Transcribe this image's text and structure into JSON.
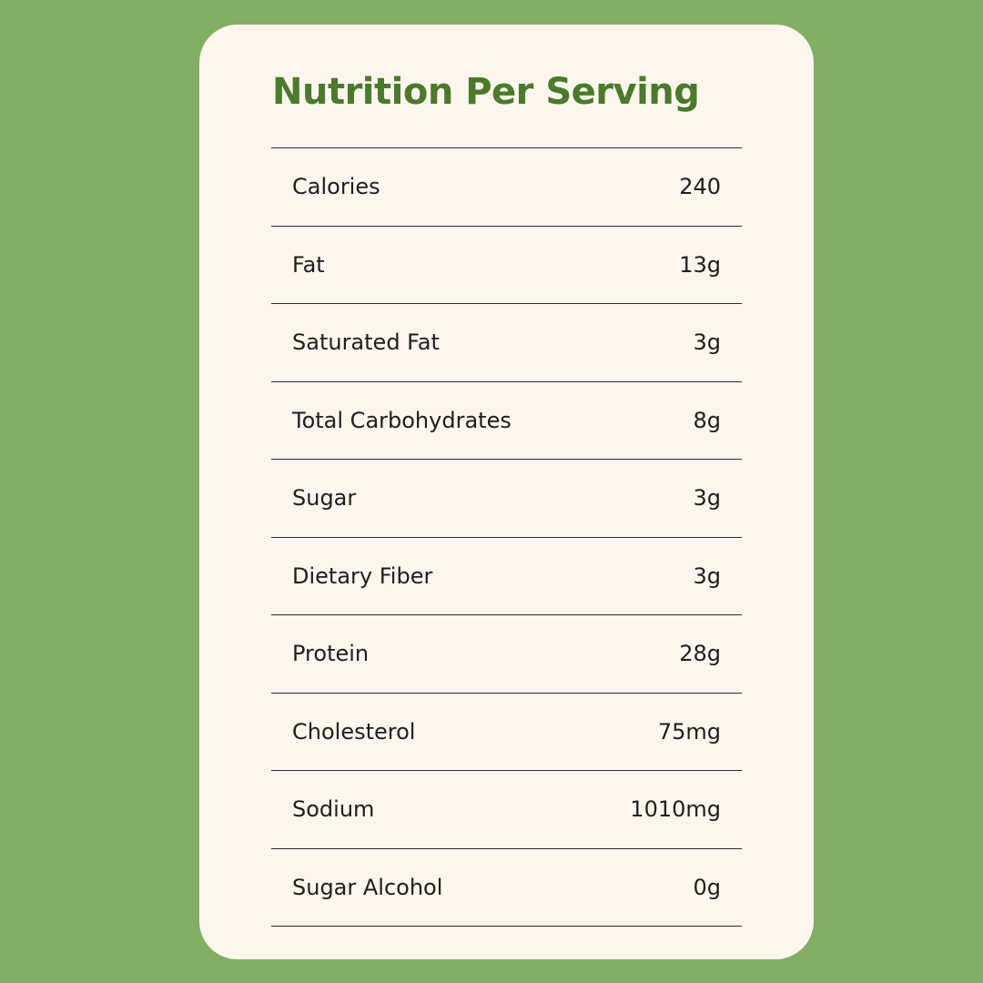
{
  "title": "Nutrition Per Serving",
  "colors": {
    "background": "#82ae63",
    "card": "#fef5ed",
    "title": "#4a7a2c",
    "text": "#1e1e1e",
    "divider": "#2b2b2b"
  },
  "rows": [
    {
      "label": "Calories",
      "value": "240"
    },
    {
      "label": "Fat",
      "value": "13g"
    },
    {
      "label": "Saturated Fat",
      "value": "3g"
    },
    {
      "label": "Total Carbohydrates",
      "value": "8g"
    },
    {
      "label": "Sugar",
      "value": "3g"
    },
    {
      "label": "Dietary Fiber",
      "value": "3g"
    },
    {
      "label": "Protein",
      "value": "28g"
    },
    {
      "label": "Cholesterol",
      "value": "75mg"
    },
    {
      "label": "Sodium",
      "value": "1010mg"
    },
    {
      "label": "Sugar Alcohol",
      "value": "0g"
    }
  ]
}
